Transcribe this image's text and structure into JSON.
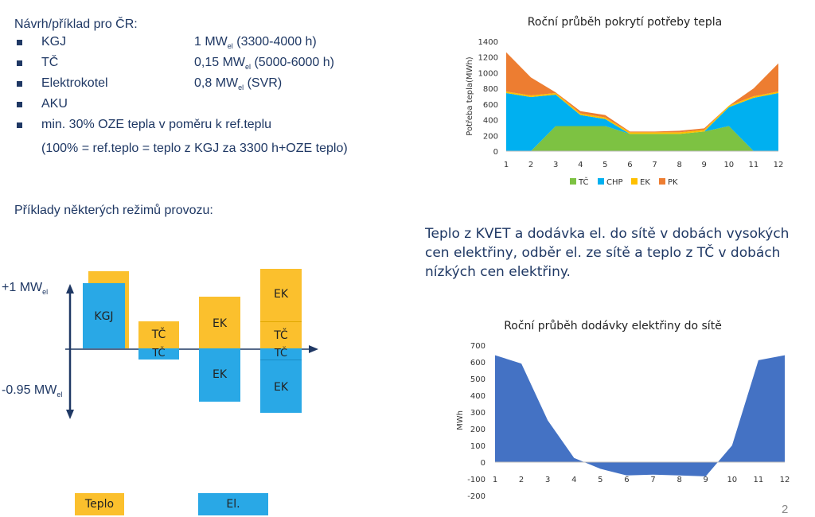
{
  "proposal": {
    "heading": "Návrh/příklad pro ČR:",
    "items": [
      {
        "label": "KGJ",
        "value": "1 MW",
        "sub": "el",
        "rest": " (3300-4000 h)"
      },
      {
        "label": "TČ",
        "value": "0,15 MW",
        "sub": "el",
        "rest": " (5000-6000 h)"
      },
      {
        "label": "Elektrokotel",
        "value": "0,8 MW",
        "sub": "el",
        "rest": "  (SVR)"
      },
      {
        "label": "AKU",
        "value": "",
        "sub": "",
        "rest": ""
      },
      {
        "label": "min. 30% OZE tepla v poměru k ref.teplu",
        "value": "",
        "sub": "",
        "rest": ""
      }
    ],
    "note": "(100% = ref.teplo = teplo z KGJ za 3300 h+OZE teplo)"
  },
  "modes": {
    "heading": "Příklady některých režimů provozu:",
    "plus_label": "+1 MW",
    "plus_sub": "el",
    "minus_label": "-0.95 MW",
    "minus_sub": "el",
    "boxes": {
      "kgj": "KGJ",
      "tc_up_1": "TČ",
      "tc_down_1": "TČ",
      "ek_up_3": "EK",
      "ek_down_3": "EK",
      "ek_up_4": "EK",
      "tc_up_4": "TČ",
      "tc_down_4": "TČ",
      "ek_down_4": "EK"
    },
    "legend": {
      "teplo": "Teplo",
      "el": "El."
    },
    "colors": {
      "teplo": "#fbc02d",
      "el": "#29a8e6"
    }
  },
  "description": "Teplo z KVET a dodávka el. do sítě v dobách vysokých cen elektřiny, odběr el. ze sítě a teplo z TČ v dobách nízkých cen elektřiny.",
  "page_number": "2",
  "chart_data": [
    {
      "type": "area",
      "stacked": true,
      "title": "Roční průběh pokrytí potřeby tepla",
      "ylabel": "Potřeba tepla(MWh)",
      "xlabel": "",
      "x": [
        1,
        2,
        3,
        4,
        5,
        6,
        7,
        8,
        9,
        10,
        11,
        12
      ],
      "ylim": [
        0,
        1400
      ],
      "yticks": [
        0,
        200,
        400,
        600,
        800,
        1000,
        1200,
        1400
      ],
      "legend_position": "bottom",
      "series": [
        {
          "name": "TČ",
          "color": "#7dc242",
          "values": [
            0,
            0,
            320,
            320,
            320,
            220,
            220,
            220,
            250,
            320,
            0,
            0
          ]
        },
        {
          "name": "CHP",
          "color": "#00b0f0",
          "values": [
            740,
            690,
            400,
            140,
            90,
            0,
            0,
            0,
            0,
            240,
            680,
            740
          ]
        },
        {
          "name": "EK",
          "color": "#ffc000",
          "values": [
            20,
            20,
            20,
            20,
            20,
            20,
            20,
            20,
            20,
            20,
            20,
            20
          ]
        },
        {
          "name": "PK",
          "color": "#ed7d31",
          "values": [
            500,
            230,
            10,
            30,
            30,
            10,
            10,
            20,
            20,
            0,
            100,
            360
          ]
        }
      ]
    },
    {
      "type": "area",
      "title": "Roční průběh dodávky elektřiny do sítě",
      "ylabel": "MWh",
      "xlabel": "",
      "x": [
        1,
        2,
        3,
        4,
        5,
        6,
        7,
        8,
        9,
        10,
        11,
        12
      ],
      "ylim": [
        -200,
        700
      ],
      "yticks": [
        -200,
        -100,
        0,
        100,
        200,
        300,
        400,
        500,
        600,
        700
      ],
      "series": [
        {
          "name": "",
          "color": "#4472c4",
          "values": [
            640,
            590,
            250,
            25,
            -40,
            -80,
            -75,
            -80,
            -85,
            100,
            610,
            640
          ]
        }
      ]
    }
  ]
}
